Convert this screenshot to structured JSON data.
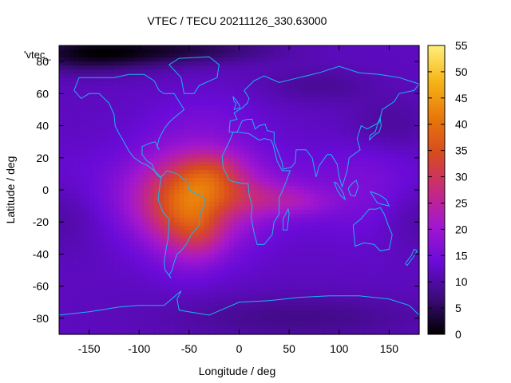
{
  "chart_data": {
    "type": "heatmap",
    "title": "VTEC / TECU 20211126_330.63000",
    "xlabel": "Longitude / deg",
    "ylabel": "Latitude / deg",
    "xlim": [
      -180,
      180
    ],
    "ylim": [
      -90,
      90
    ],
    "x_ticks": [
      -150,
      -100,
      -50,
      0,
      50,
      100,
      150
    ],
    "x_tick_labels": [
      "-150",
      "-100",
      "-50",
      "0",
      "50",
      "100",
      "150"
    ],
    "y_ticks": [
      -80,
      -60,
      -40,
      -20,
      0,
      20,
      40,
      60,
      80
    ],
    "y_tick_labels": [
      "-80",
      "-60",
      "-40",
      "-20",
      "0",
      "20",
      "40",
      "60",
      "80"
    ],
    "colorbar": {
      "range": [
        0,
        55
      ],
      "ticks": [
        0,
        5,
        10,
        15,
        20,
        25,
        30,
        35,
        40,
        45,
        50,
        55
      ],
      "tick_labels": [
        "0",
        "5",
        "10",
        "15",
        "20",
        "25",
        "30",
        "35",
        "40",
        "45",
        "50",
        "55"
      ],
      "palette": [
        "#000000",
        "#3b0b7a",
        "#6a0bd8",
        "#a317cf",
        "#c62a7e",
        "#d84a20",
        "#e8780b",
        "#f5b418",
        "#fff07a"
      ]
    },
    "legend_label": "'vtec_",
    "legend_position": "top-left",
    "background_level": 12,
    "blobs": [
      {
        "lon": -45,
        "lat": -5,
        "sx": 40,
        "sy": 22,
        "amp": 18
      },
      {
        "lon": -30,
        "lat": 5,
        "sx": 22,
        "sy": 9,
        "amp": 6
      },
      {
        "lon": -25,
        "lat": 15,
        "sx": 22,
        "sy": 8,
        "amp": 4
      },
      {
        "lon": -55,
        "lat": -20,
        "sx": 20,
        "sy": 18,
        "amp": 7
      },
      {
        "lon": -35,
        "lat": -28,
        "sx": 15,
        "sy": 12,
        "amp": 5
      },
      {
        "lon": 20,
        "lat": -5,
        "sx": 35,
        "sy": 8,
        "amp": 6
      },
      {
        "lon": 60,
        "lat": -8,
        "sx": 25,
        "sy": 6,
        "amp": 4
      },
      {
        "lon": -80,
        "lat": -10,
        "sx": 25,
        "sy": 15,
        "amp": 3
      },
      {
        "lon": -30,
        "lat": 45,
        "sx": 40,
        "sy": 12,
        "amp": 2
      },
      {
        "lon": 130,
        "lat": 0,
        "sx": 30,
        "sy": 25,
        "amp": 2
      },
      {
        "lon": 0,
        "lat": 0,
        "sx": 180,
        "sy": 18,
        "amp": 3
      },
      {
        "lon": -150,
        "lat": 85,
        "sx": 50,
        "sy": 8,
        "amp": -10
      },
      {
        "lon": -50,
        "lat": 87,
        "sx": 60,
        "sy": 6,
        "amp": -7
      },
      {
        "lon": 80,
        "lat": 65,
        "sx": 40,
        "sy": 8,
        "amp": -3
      },
      {
        "lon": 150,
        "lat": 40,
        "sx": 30,
        "sy": 12,
        "amp": -3
      },
      {
        "lon": 180,
        "lat": -15,
        "sx": 30,
        "sy": 15,
        "amp": -3
      },
      {
        "lon": -180,
        "lat": -15,
        "sx": 30,
        "sy": 15,
        "amp": -3
      },
      {
        "lon": 60,
        "lat": -80,
        "sx": 90,
        "sy": 10,
        "amp": -4
      }
    ],
    "coastlines": [
      {
        "name": "north-america",
        "points": [
          [
            -165,
            62
          ],
          [
            -160,
            70
          ],
          [
            -140,
            70
          ],
          [
            -125,
            70
          ],
          [
            -110,
            72
          ],
          [
            -95,
            72
          ],
          [
            -85,
            68
          ],
          [
            -80,
            62
          ],
          [
            -75,
            60
          ],
          [
            -65,
            60
          ],
          [
            -60,
            55
          ],
          [
            -55,
            50
          ],
          [
            -65,
            45
          ],
          [
            -70,
            42
          ],
          [
            -75,
            38
          ],
          [
            -80,
            32
          ],
          [
            -82,
            27
          ],
          [
            -80,
            25
          ],
          [
            -84,
            30
          ],
          [
            -90,
            29
          ],
          [
            -97,
            27
          ],
          [
            -97,
            22
          ],
          [
            -92,
            18
          ],
          [
            -87,
            16
          ],
          [
            -84,
            11
          ],
          [
            -80,
            8
          ],
          [
            -78,
            8
          ],
          [
            -85,
            12
          ],
          [
            -91,
            15
          ],
          [
            -98,
            17
          ],
          [
            -105,
            20
          ],
          [
            -110,
            24
          ],
          [
            -117,
            32
          ],
          [
            -120,
            35
          ],
          [
            -124,
            40
          ],
          [
            -125,
            47
          ],
          [
            -130,
            54
          ],
          [
            -140,
            60
          ],
          [
            -150,
            60
          ],
          [
            -158,
            57
          ],
          [
            -165,
            62
          ]
        ]
      },
      {
        "name": "greenland",
        "points": [
          [
            -55,
            60
          ],
          [
            -45,
            60
          ],
          [
            -40,
            65
          ],
          [
            -22,
            70
          ],
          [
            -20,
            78
          ],
          [
            -30,
            83
          ],
          [
            -60,
            82
          ],
          [
            -70,
            78
          ],
          [
            -58,
            70
          ],
          [
            -55,
            60
          ]
        ]
      },
      {
        "name": "south-america",
        "points": [
          [
            -78,
            8
          ],
          [
            -72,
            12
          ],
          [
            -62,
            10
          ],
          [
            -52,
            5
          ],
          [
            -50,
            0
          ],
          [
            -44,
            -2
          ],
          [
            -35,
            -5
          ],
          [
            -35,
            -10
          ],
          [
            -39,
            -15
          ],
          [
            -40,
            -22
          ],
          [
            -48,
            -28
          ],
          [
            -53,
            -34
          ],
          [
            -58,
            -38
          ],
          [
            -62,
            -40
          ],
          [
            -65,
            -45
          ],
          [
            -67,
            -50
          ],
          [
            -70,
            -53
          ],
          [
            -68,
            -55
          ],
          [
            -74,
            -50
          ],
          [
            -75,
            -45
          ],
          [
            -73,
            -37
          ],
          [
            -71,
            -30
          ],
          [
            -70,
            -18
          ],
          [
            -76,
            -14
          ],
          [
            -81,
            -6
          ],
          [
            -80,
            0
          ],
          [
            -78,
            8
          ]
        ]
      },
      {
        "name": "africa",
        "points": [
          [
            -17,
            21
          ],
          [
            -16,
            14
          ],
          [
            -10,
            6
          ],
          [
            -5,
            5
          ],
          [
            5,
            4
          ],
          [
            9,
            4
          ],
          [
            10,
            -3
          ],
          [
            13,
            -10
          ],
          [
            12,
            -17
          ],
          [
            15,
            -27
          ],
          [
            18,
            -34
          ],
          [
            25,
            -34
          ],
          [
            33,
            -28
          ],
          [
            35,
            -20
          ],
          [
            40,
            -15
          ],
          [
            40,
            -5
          ],
          [
            45,
            2
          ],
          [
            51,
            12
          ],
          [
            43,
            12
          ],
          [
            38,
            18
          ],
          [
            34,
            28
          ],
          [
            32,
            31
          ],
          [
            25,
            32
          ],
          [
            20,
            31
          ],
          [
            10,
            35
          ],
          [
            0,
            36
          ],
          [
            -6,
            36
          ],
          [
            -10,
            30
          ],
          [
            -17,
            21
          ]
        ]
      },
      {
        "name": "madagascar",
        "points": [
          [
            44,
            -25
          ],
          [
            48,
            -25
          ],
          [
            50,
            -15
          ],
          [
            49,
            -12
          ],
          [
            44,
            -18
          ],
          [
            44,
            -25
          ]
        ]
      },
      {
        "name": "eurasia",
        "points": [
          [
            -10,
            36
          ],
          [
            -9,
            43
          ],
          [
            -2,
            44
          ],
          [
            -5,
            48
          ],
          [
            3,
            51
          ],
          [
            8,
            54
          ],
          [
            10,
            57
          ],
          [
            5,
            62
          ],
          [
            15,
            68
          ],
          [
            25,
            71
          ],
          [
            40,
            67
          ],
          [
            60,
            70
          ],
          [
            80,
            73
          ],
          [
            100,
            77
          ],
          [
            120,
            73
          ],
          [
            140,
            72
          ],
          [
            160,
            70
          ],
          [
            180,
            66
          ],
          [
            175,
            62
          ],
          [
            160,
            60
          ],
          [
            155,
            55
          ],
          [
            143,
            50
          ],
          [
            140,
            42
          ],
          [
            128,
            38
          ],
          [
            122,
            40
          ],
          [
            118,
            32
          ],
          [
            121,
            25
          ],
          [
            110,
            20
          ],
          [
            108,
            12
          ],
          [
            103,
            2
          ],
          [
            100,
            8
          ],
          [
            98,
            16
          ],
          [
            92,
            22
          ],
          [
            88,
            22
          ],
          [
            80,
            15
          ],
          [
            77,
            8
          ],
          [
            73,
            20
          ],
          [
            67,
            25
          ],
          [
            57,
            25
          ],
          [
            56,
            17
          ],
          [
            52,
            14
          ],
          [
            44,
            13
          ],
          [
            43,
            17
          ],
          [
            35,
            30
          ],
          [
            35,
            36
          ],
          [
            28,
            37
          ],
          [
            26,
            41
          ],
          [
            20,
            40
          ],
          [
            16,
            38
          ],
          [
            13,
            44
          ],
          [
            8,
            44
          ],
          [
            3,
            43
          ],
          [
            -2,
            36
          ],
          [
            -10,
            36
          ]
        ]
      },
      {
        "name": "great-britain",
        "points": [
          [
            -5,
            50
          ],
          [
            1,
            51
          ],
          [
            0,
            53
          ],
          [
            -3,
            56
          ],
          [
            -6,
            58
          ],
          [
            -5,
            55
          ],
          [
            -3,
            54
          ],
          [
            -5,
            50
          ]
        ]
      },
      {
        "name": "japan",
        "points": [
          [
            130,
            31
          ],
          [
            135,
            34
          ],
          [
            140,
            36
          ],
          [
            142,
            40
          ],
          [
            141,
            45
          ],
          [
            139,
            42
          ],
          [
            136,
            36
          ],
          [
            131,
            34
          ],
          [
            130,
            31
          ]
        ]
      },
      {
        "name": "sumatra",
        "points": [
          [
            95,
            5
          ],
          [
            98,
            4
          ],
          [
            104,
            -2
          ],
          [
            106,
            -6
          ],
          [
            102,
            -4
          ],
          [
            98,
            0
          ],
          [
            95,
            5
          ]
        ]
      },
      {
        "name": "borneo",
        "points": [
          [
            109,
            1
          ],
          [
            113,
            4
          ],
          [
            117,
            6
          ],
          [
            119,
            2
          ],
          [
            116,
            -4
          ],
          [
            111,
            -3
          ],
          [
            109,
            1
          ]
        ]
      },
      {
        "name": "new-guinea",
        "points": [
          [
            131,
            -1
          ],
          [
            140,
            -3
          ],
          [
            147,
            -6
          ],
          [
            150,
            -10
          ],
          [
            143,
            -9
          ],
          [
            138,
            -8
          ],
          [
            131,
            -1
          ]
        ]
      },
      {
        "name": "australia",
        "points": [
          [
            114,
            -22
          ],
          [
            122,
            -18
          ],
          [
            130,
            -12
          ],
          [
            137,
            -12
          ],
          [
            141,
            -11
          ],
          [
            145,
            -15
          ],
          [
            149,
            -22
          ],
          [
            153,
            -28
          ],
          [
            150,
            -37
          ],
          [
            141,
            -38
          ],
          [
            135,
            -34
          ],
          [
            125,
            -33
          ],
          [
            116,
            -35
          ],
          [
            114,
            -22
          ]
        ]
      },
      {
        "name": "new-zealand",
        "points": [
          [
            166,
            -46
          ],
          [
            172,
            -41
          ],
          [
            175,
            -37
          ],
          [
            178,
            -38
          ],
          [
            174,
            -42
          ],
          [
            168,
            -47
          ],
          [
            166,
            -46
          ]
        ]
      },
      {
        "name": "antarctica",
        "points": [
          [
            -180,
            -78
          ],
          [
            -150,
            -76
          ],
          [
            -120,
            -73
          ],
          [
            -100,
            -72
          ],
          [
            -75,
            -72
          ],
          [
            -60,
            -64
          ],
          [
            -58,
            -63
          ],
          [
            -62,
            -68
          ],
          [
            -60,
            -75
          ],
          [
            -30,
            -78
          ],
          [
            0,
            -70
          ],
          [
            30,
            -69
          ],
          [
            60,
            -67
          ],
          [
            90,
            -66
          ],
          [
            120,
            -66
          ],
          [
            150,
            -68
          ],
          [
            170,
            -72
          ],
          [
            180,
            -78
          ]
        ]
      }
    ]
  }
}
